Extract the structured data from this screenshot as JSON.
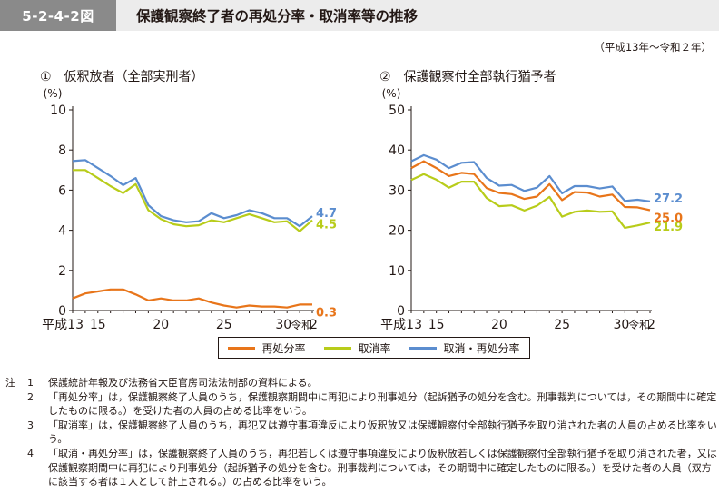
{
  "header": {
    "figure_number": "5-2-4-2図",
    "title": "保護観察終了者の再処分率・取消率等の推移"
  },
  "period": "（平成13年～令和２年）",
  "colors": {
    "reoffense": "#e8751a",
    "revocation": "#b8cc1a",
    "combined": "#5b8dcf"
  },
  "legend": [
    "再処分率",
    "取消率",
    "取消・再処分率"
  ],
  "chart_data": [
    {
      "type": "line",
      "title": "①　仮釈放者（全部実刑者）",
      "ylabel": "(%)",
      "ylim": [
        0,
        10
      ],
      "yticks": [
        0,
        2,
        4,
        6,
        8,
        10
      ],
      "x": [
        2001,
        2002,
        2003,
        2004,
        2005,
        2006,
        2007,
        2008,
        2009,
        2010,
        2011,
        2012,
        2013,
        2014,
        2015,
        2016,
        2017,
        2018,
        2019,
        2020
      ],
      "xtick_labels": [
        {
          "x": 2001,
          "label": "平成13"
        },
        {
          "x": 2003,
          "label": "15"
        },
        {
          "x": 2008,
          "label": "20"
        },
        {
          "x": 2013,
          "label": "25"
        },
        {
          "x": 2018,
          "label": "30"
        },
        {
          "x": 2019,
          "label": "令和"
        },
        {
          "x": 2020,
          "label": "2"
        }
      ],
      "series": [
        {
          "name": "再処分率",
          "color_key": "reoffense",
          "label": "0.3",
          "values": [
            0.6,
            0.85,
            0.95,
            1.05,
            1.05,
            0.8,
            0.5,
            0.6,
            0.5,
            0.5,
            0.6,
            0.4,
            0.25,
            0.15,
            0.25,
            0.2,
            0.2,
            0.15,
            0.3,
            0.3
          ]
        },
        {
          "name": "取消率",
          "color_key": "revocation",
          "label": "4.5",
          "values": [
            7.0,
            7.0,
            6.6,
            6.2,
            5.85,
            6.3,
            5.0,
            4.55,
            4.3,
            4.2,
            4.25,
            4.5,
            4.4,
            4.6,
            4.8,
            4.6,
            4.4,
            4.45,
            3.95,
            4.5
          ]
        },
        {
          "name": "取消・再処分率",
          "color_key": "combined",
          "label": "4.7",
          "values": [
            7.45,
            7.5,
            7.1,
            6.7,
            6.25,
            6.6,
            5.25,
            4.7,
            4.5,
            4.4,
            4.45,
            4.85,
            4.6,
            4.75,
            5.0,
            4.85,
            4.6,
            4.6,
            4.2,
            4.7
          ]
        }
      ]
    },
    {
      "type": "line",
      "title": "②　保護観察付全部執行猶予者",
      "ylabel": "(%)",
      "ylim": [
        0,
        50
      ],
      "yticks": [
        0,
        10,
        20,
        30,
        40,
        50
      ],
      "x": [
        2001,
        2002,
        2003,
        2004,
        2005,
        2006,
        2007,
        2008,
        2009,
        2010,
        2011,
        2012,
        2013,
        2014,
        2015,
        2016,
        2017,
        2018,
        2019,
        2020
      ],
      "xtick_labels": [
        {
          "x": 2001,
          "label": "平成13"
        },
        {
          "x": 2003,
          "label": "15"
        },
        {
          "x": 2008,
          "label": "20"
        },
        {
          "x": 2013,
          "label": "25"
        },
        {
          "x": 2018,
          "label": "30"
        },
        {
          "x": 2019,
          "label": "令和"
        },
        {
          "x": 2020,
          "label": "2"
        }
      ],
      "series": [
        {
          "name": "再処分率",
          "color_key": "reoffense",
          "label": "25.0",
          "values": [
            35.5,
            37.2,
            35.5,
            33.5,
            34.3,
            34.0,
            30.5,
            29.3,
            29.0,
            27.8,
            28.4,
            31.5,
            27.5,
            29.5,
            29.4,
            28.4,
            28.9,
            25.8,
            25.7,
            25.0
          ]
        },
        {
          "name": "取消率",
          "color_key": "revocation",
          "label": "21.9",
          "values": [
            32.5,
            34.0,
            32.6,
            30.6,
            32.1,
            32.1,
            28.0,
            26.0,
            26.2,
            24.9,
            26.1,
            28.3,
            23.4,
            24.6,
            24.9,
            24.6,
            24.7,
            20.6,
            21.2,
            21.9
          ]
        },
        {
          "name": "取消・再処分率",
          "color_key": "combined",
          "label": "27.2",
          "values": [
            37.2,
            38.7,
            37.6,
            35.5,
            36.8,
            37.0,
            33.0,
            31.1,
            31.3,
            29.8,
            30.6,
            33.5,
            29.2,
            31.0,
            31.0,
            30.4,
            30.9,
            27.3,
            27.6,
            27.2
          ]
        }
      ]
    }
  ],
  "notes": {
    "prefix": "注",
    "items": [
      {
        "num": "1",
        "text": "保護統計年報及び法務省大臣官房司法法制部の資料による。"
      },
      {
        "num": "2",
        "text": "「再処分率」は，保護観察終了人員のうち，保護観察期間中に再犯により刑事処分（起訴猶予の処分を含む。刑事裁判については，その期間中に確定したものに限る。）を受けた者の人員の占める比率をいう。"
      },
      {
        "num": "3",
        "text": "「取消率」は，保護観察終了人員のうち，再犯又は遵守事項違反により仮釈放又は保護観察付全部執行猶予を取り消された者の人員の占める比率をいう。"
      },
      {
        "num": "4",
        "text": "「取消・再処分率」は，保護観察終了人員のうち，再犯若しくは遵守事項違反により仮釈放若しくは保護観察付全部執行猶予を取り消された者，又は保護観察期間中に再犯により刑事処分（起訴猶予の処分を含む。刑事裁判については，その期間中に確定したものに限る。）を受けた者の人員（双方に該当する者は１人として計上される。）の占める比率をいう。"
      }
    ]
  }
}
